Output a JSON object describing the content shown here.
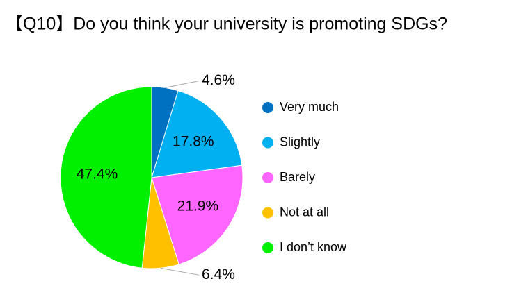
{
  "chart_data": {
    "type": "pie",
    "title": "【Q10】Do you think your university is promoting SDGs?",
    "categories": [
      "Very much",
      "Slightly",
      "Barely",
      "Not at all",
      "I don’t know"
    ],
    "values": [
      4.6,
      17.8,
      21.9,
      6.4,
      47.4
    ],
    "value_labels": [
      "4.6%",
      "17.8%",
      "21.9%",
      "6.4%",
      "47.4%"
    ],
    "colors": [
      "#0070c0",
      "#00b0f0",
      "#ff66ff",
      "#ffc000",
      "#00f000"
    ],
    "legend": "right"
  }
}
